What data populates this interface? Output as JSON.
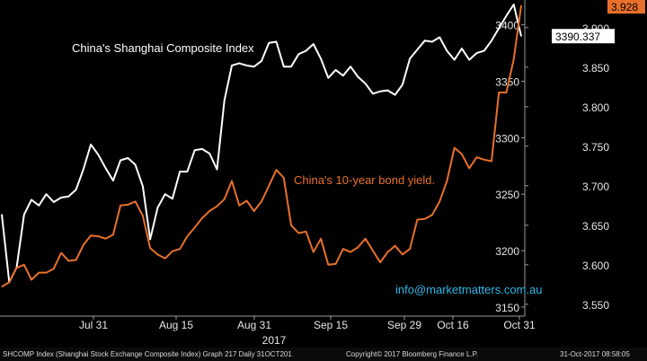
{
  "chart_data": {
    "type": "line",
    "year_label": "2017",
    "x_ticks": [
      "Jul 31",
      "Aug 15",
      "Aug 31",
      "Sep 15",
      "Sep 29",
      "Oct 16",
      "Oct 31"
    ],
    "left_axis": {
      "ticks": [
        3400,
        3350,
        3300,
        3250,
        3200,
        3150
      ],
      "range": [
        3142,
        3422
      ]
    },
    "right_axis": {
      "ticks": [
        "3.900",
        "3.850",
        "3.800",
        "3.750",
        "3.700",
        "3.650",
        "3.600",
        "3.550"
      ],
      "range": [
        3.535,
        3.935
      ]
    },
    "series": [
      {
        "name": "China's Shanghai Composite Index",
        "axis": "left",
        "color": "#ffffff",
        "last_value_label": "3390.337",
        "values": [
          3232,
          3172,
          3185,
          3232,
          3245,
          3240,
          3250,
          3243,
          3247,
          3248,
          3254,
          3272,
          3294,
          3285,
          3273,
          3262,
          3280,
          3282,
          3276,
          3257,
          3210,
          3238,
          3250,
          3246,
          3270,
          3270,
          3289,
          3290,
          3286,
          3272,
          3333,
          3364,
          3366,
          3364,
          3363,
          3368,
          3384,
          3385,
          3363,
          3363,
          3374,
          3377,
          3383,
          3370,
          3353,
          3360,
          3355,
          3363,
          3354,
          3348,
          3339,
          3341,
          3342,
          3338,
          3347,
          3370,
          3378,
          3386,
          3385,
          3389,
          3377,
          3369,
          3379,
          3369,
          3375,
          3377,
          3386,
          3397,
          3408,
          3418,
          3390
        ]
      },
      {
        "name": "China's 10-year bond yield.",
        "axis": "right",
        "color": "#e8702a",
        "last_value_label": "3.928",
        "values": [
          3.572,
          3.578,
          3.596,
          3.6,
          3.581,
          3.59,
          3.59,
          3.595,
          3.615,
          3.605,
          3.606,
          3.625,
          3.637,
          3.636,
          3.633,
          3.638,
          3.675,
          3.676,
          3.68,
          3.662,
          3.621,
          3.613,
          3.608,
          3.617,
          3.62,
          3.636,
          3.647,
          3.659,
          3.668,
          3.674,
          3.683,
          3.706,
          3.675,
          3.681,
          3.668,
          3.68,
          3.7,
          3.72,
          3.71,
          3.65,
          3.64,
          3.642,
          3.616,
          3.633,
          3.6,
          3.601,
          3.62,
          3.616,
          3.622,
          3.633,
          3.618,
          3.603,
          3.616,
          3.624,
          3.613,
          3.62,
          3.657,
          3.658,
          3.663,
          3.68,
          3.706,
          3.748,
          3.74,
          3.722,
          3.736,
          3.733,
          3.731,
          3.818,
          3.818,
          3.86,
          3.928
        ]
      }
    ],
    "annotation": "info@marketmatters.com.au"
  },
  "footer": {
    "left": "SHCOMP Index (Shanghai Stock Exchange Composite Index) Graph 217  Daily 31OCT201",
    "center": "Copyright© 2017 Bloomberg Finance L.P.",
    "right": "31-Oct-2017 08:58:05"
  }
}
